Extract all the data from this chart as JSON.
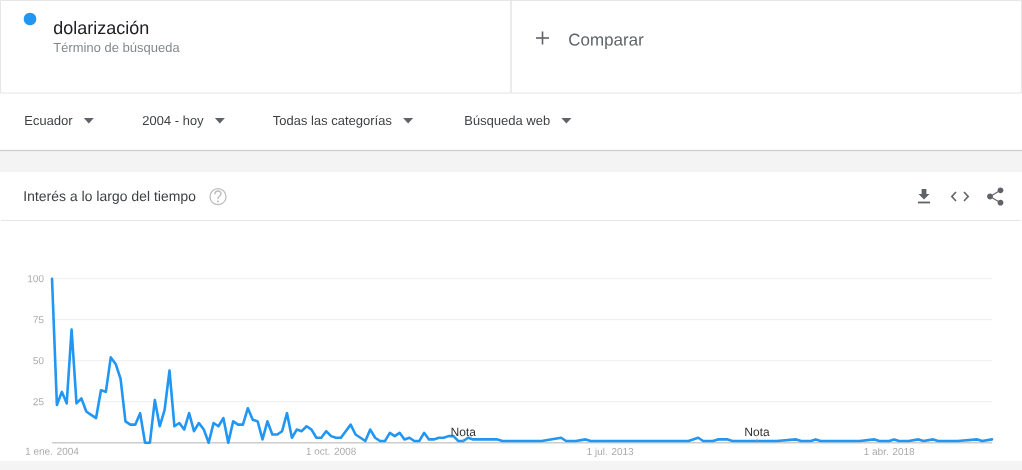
{
  "chart_data": {
    "type": "line",
    "title": "Interés a lo largo del tiempo",
    "x": [
      "2004-01",
      "2004-02",
      "2004-03",
      "2004-04",
      "2004-05",
      "2004-06",
      "2004-07",
      "2004-08",
      "2004-09",
      "2004-10",
      "2004-11",
      "2004-12",
      "2005-01",
      "2005-02",
      "2005-03",
      "2005-04",
      "2005-05",
      "2005-06",
      "2005-07",
      "2005-08",
      "2005-09",
      "2005-10",
      "2005-11",
      "2005-12",
      "2006-01",
      "2006-02",
      "2006-03",
      "2006-04",
      "2006-05",
      "2006-06",
      "2006-07",
      "2006-08",
      "2006-09",
      "2006-10",
      "2006-11",
      "2006-12",
      "2007-01",
      "2007-02",
      "2007-03",
      "2007-04",
      "2007-05",
      "2007-06",
      "2007-07",
      "2007-08",
      "2007-09",
      "2007-10",
      "2007-11",
      "2007-12",
      "2008-01",
      "2008-02",
      "2008-03",
      "2008-04",
      "2008-05",
      "2008-06",
      "2008-07",
      "2008-08",
      "2008-09",
      "2008-10",
      "2008-11",
      "2008-12",
      "2009-01",
      "2009-02",
      "2009-03",
      "2009-04",
      "2009-05",
      "2009-06",
      "2009-07",
      "2009-08",
      "2009-09",
      "2009-10",
      "2009-11",
      "2009-12",
      "2010-01",
      "2010-02",
      "2010-03",
      "2010-04",
      "2010-05",
      "2010-06",
      "2010-07",
      "2010-08",
      "2010-09",
      "2010-10",
      "2010-11",
      "2010-12",
      "2011-01",
      "2011-02",
      "2011-03",
      "2011-04",
      "2011-05",
      "2011-06",
      "2011-07",
      "2011-08",
      "2011-09",
      "2012-01",
      "2012-05",
      "2012-09",
      "2012-10",
      "2012-12",
      "2013-02",
      "2013-03",
      "2013-07",
      "2013-11",
      "2014-03",
      "2014-07",
      "2014-11",
      "2015-01",
      "2015-02",
      "2015-04",
      "2015-05",
      "2015-07",
      "2015-08",
      "2015-10",
      "2016-01",
      "2016-05",
      "2016-09",
      "2016-10",
      "2016-12",
      "2017-01",
      "2017-02",
      "2017-06",
      "2017-10",
      "2018-01",
      "2018-02",
      "2018-04",
      "2018-05",
      "2018-06",
      "2018-08",
      "2018-10",
      "2018-11",
      "2019-01",
      "2019-02",
      "2019-06",
      "2019-10",
      "2019-11",
      "2020-01"
    ],
    "series": [
      {
        "name": "dolarización",
        "color": "#2196f3",
        "values": [
          100,
          23,
          31,
          24,
          69,
          24,
          27,
          19,
          17,
          15,
          32,
          31,
          52,
          48,
          39,
          13,
          11,
          11,
          18,
          0,
          0,
          26,
          10,
          20,
          44,
          10,
          12,
          8,
          18,
          7,
          12,
          8,
          0,
          12,
          10,
          15,
          0,
          13,
          11,
          11,
          21,
          14,
          13,
          2,
          13,
          5,
          5,
          7,
          18,
          3,
          8,
          7,
          10,
          8,
          3,
          3,
          7,
          4,
          3,
          3,
          7,
          11,
          5,
          3,
          1,
          8,
          3,
          1,
          1,
          6,
          4,
          6,
          2,
          3,
          1,
          1,
          6,
          2,
          2,
          3,
          3,
          4,
          4,
          1,
          1,
          3,
          2,
          2,
          2,
          2,
          2,
          2,
          1,
          1,
          1,
          3,
          1,
          1,
          2,
          1,
          1,
          1,
          1,
          1,
          1,
          3,
          1,
          1,
          2,
          2,
          1,
          1,
          1,
          1,
          2,
          1,
          1,
          2,
          1,
          1,
          1,
          2,
          1,
          1,
          2,
          1,
          1,
          2,
          1,
          2,
          1,
          1,
          2,
          1,
          2
        ]
      }
    ],
    "xlim": [
      "2004-01",
      "2020-01"
    ],
    "ylim": [
      0,
      100
    ],
    "xticks": [
      {
        "value": "2004-01",
        "label": "1 ene. 2004"
      },
      {
        "value": "2008-10",
        "label": "1 oct. 2008"
      },
      {
        "value": "2013-07",
        "label": "1 jul. 2013"
      },
      {
        "value": "2018-04",
        "label": "1 abr. 2018"
      }
    ],
    "yticks": [
      25,
      50,
      75,
      100
    ],
    "grid": "y",
    "legend": "top left",
    "annotations": [
      "Término de búsqueda",
      "Comparar",
      "Ecuador",
      "2004 - hoy",
      "Todas las categorías",
      "Búsqueda web",
      {
        "text": "Nota",
        "x": "2011-01",
        "y": 1
      },
      {
        "text": "Nota",
        "x": "2016-01",
        "y": 1
      }
    ]
  }
}
